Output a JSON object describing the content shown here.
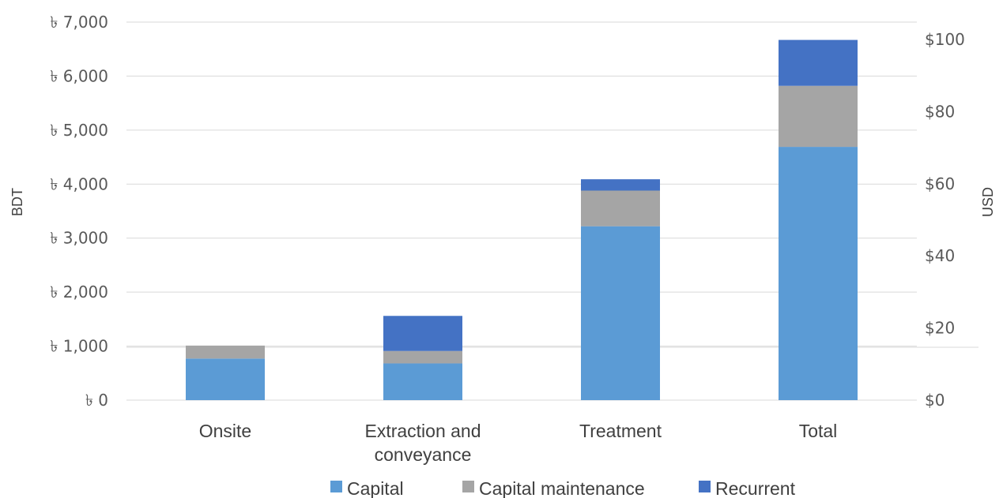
{
  "chart_data": {
    "type": "bar",
    "stacked": true,
    "categories": [
      "Onsite",
      "Extraction and conveyance",
      "Treatment",
      "Total"
    ],
    "series": [
      {
        "name": "Capital",
        "color": "#5b9bd5",
        "values": [
          770,
          680,
          3220,
          4690
        ]
      },
      {
        "name": "Capital maintenance",
        "color": "#a5a5a5",
        "values": [
          240,
          230,
          660,
          1130
        ]
      },
      {
        "name": "Recurrent",
        "color": "#4472c4",
        "values": [
          0,
          650,
          210,
          850
        ]
      }
    ],
    "ylabel": "BDT",
    "y2label": "USD",
    "ylim": [
      0,
      7000
    ],
    "y2lim": [
      0,
      100
    ],
    "yticks": [
      "৳ 0",
      "৳ 1,000",
      "৳ 2,000",
      "৳ 3,000",
      "৳ 4,000",
      "৳ 5,000",
      "৳ 6,000",
      "৳ 7,000"
    ],
    "ytick_values": [
      0,
      1000,
      2000,
      3000,
      4000,
      5000,
      6000,
      7000
    ],
    "y2ticks": [
      "$0",
      "$20",
      "$40",
      "$60",
      "$80",
      "$100"
    ],
    "y2tick_values": [
      0,
      20,
      40,
      60,
      80,
      100
    ],
    "grid": true,
    "legend_position": "bottom"
  }
}
